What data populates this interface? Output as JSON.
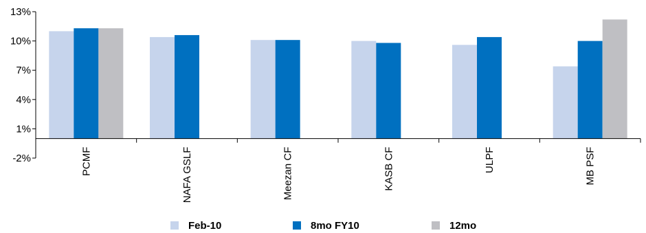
{
  "chart_data": {
    "type": "bar",
    "categories": [
      "PCMF",
      "NAFA GSLF",
      "Meezan CF",
      "KASB CF",
      "ULPF",
      "MB PSF"
    ],
    "series": [
      {
        "name": "Feb-10",
        "color": "#c6d4ec",
        "values": [
          11.0,
          10.4,
          10.1,
          10.0,
          9.6,
          7.4
        ]
      },
      {
        "name": "8mo FY10",
        "color": "#0070c0",
        "values": [
          11.3,
          10.6,
          10.1,
          9.8,
          10.4,
          10.0
        ]
      },
      {
        "name": "12mo",
        "color": "#bfbfc3",
        "values": [
          11.3,
          null,
          null,
          null,
          null,
          12.2
        ]
      }
    ],
    "yticks": [
      "13%",
      "10%",
      "7%",
      "4%",
      "1%",
      "-2%"
    ],
    "ytick_values": [
      13,
      10,
      7,
      4,
      1,
      -2
    ],
    "ylim": [
      -2,
      13
    ],
    "title": "",
    "xlabel": "",
    "ylabel": "",
    "legend_position": "bottom",
    "grid": false
  }
}
